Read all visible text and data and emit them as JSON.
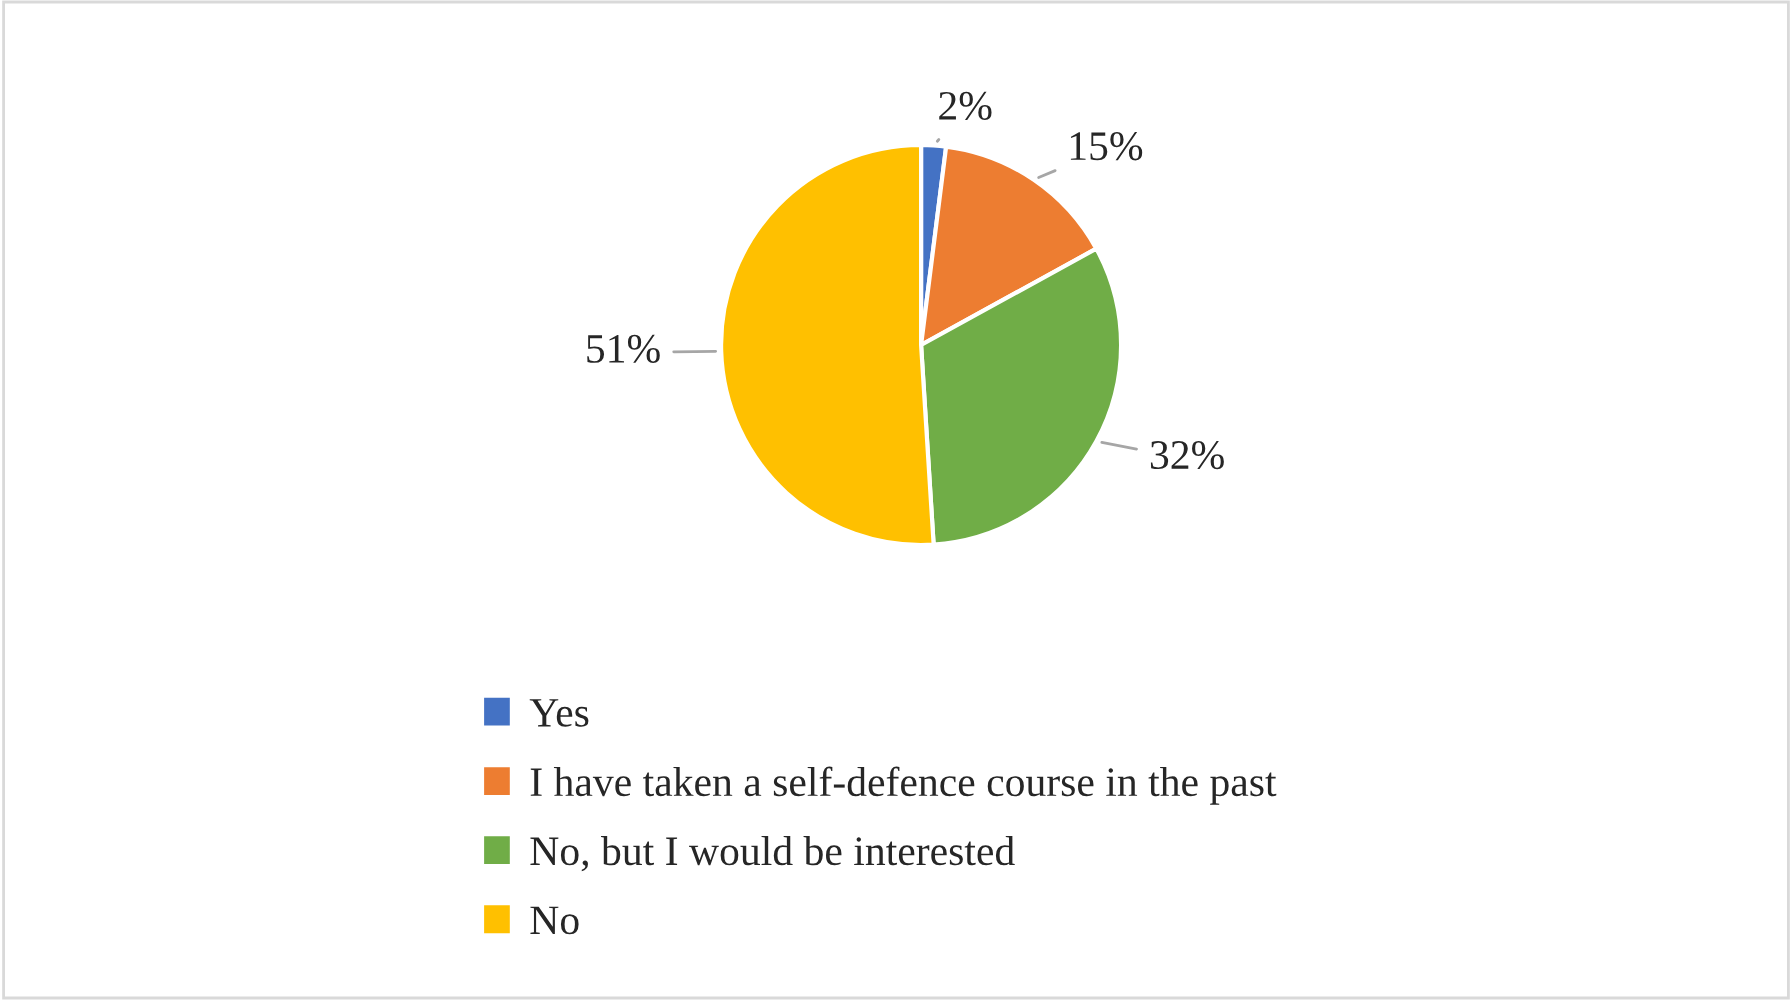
{
  "chart_data": {
    "type": "pie",
    "categories": [
      "Yes",
      "I have taken a self-defence course in the past",
      "No, but I would be interested",
      "No"
    ],
    "values": [
      2,
      15,
      32,
      51
    ],
    "colors": [
      "#4472c4",
      "#ed7d31",
      "#70ad47",
      "#ffc000"
    ],
    "value_labels": [
      "2%",
      "15%",
      "32%",
      "51%"
    ],
    "legend": "bottom"
  }
}
